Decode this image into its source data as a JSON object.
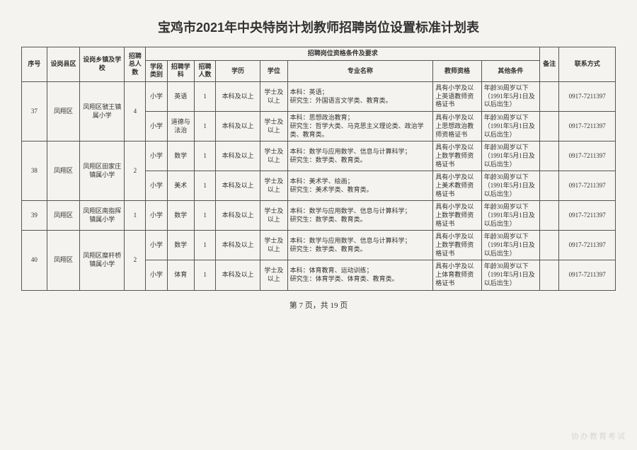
{
  "title": "宝鸡市2021年中央特岗计划教师招聘岗位设置标准计划表",
  "footer": "第 7 页，共 19 页",
  "colw": [
    "26",
    "34",
    "46",
    "22",
    "22",
    "28",
    "22",
    "46",
    "28",
    "150",
    "50",
    "60",
    "20",
    "58"
  ],
  "header": {
    "seq": "序号",
    "county": "设岗县区",
    "school": "设岗乡镇及学校",
    "total": "招聘总人数",
    "req_group": "招聘岗位资格条件及要求",
    "remark": "备注",
    "contact": "联系方式",
    "stage": "学段类别",
    "subject": "招聘学科",
    "num": "招聘人数",
    "edu": "学历",
    "degree": "学位",
    "major": "专业名称",
    "cert": "教师资格",
    "other": "其他条件"
  },
  "groups": [
    {
      "seq": "37",
      "county": "凤翔区",
      "school": "凤翔区虢王镇属小学",
      "total": "4",
      "rows": [
        {
          "stage": "小学",
          "subject": "英语",
          "num": "1",
          "edu": "本科及以上",
          "degree": "学士及以上",
          "major": "本科：英语；\n研究生：外国语言文学类、教育类。",
          "cert": "具有小学及以上英语教师资格证书",
          "other": "年龄30周岁以下（1991年5月1日及以后出生）",
          "remark": "",
          "contact": "0917-7211397"
        },
        {
          "stage": "小学",
          "subject": "道德与法治",
          "num": "1",
          "edu": "本科及以上",
          "degree": "学士及以上",
          "major": "本科：思想政治教育；\n研究生：哲学大类、马克思主义理论类、政治学类、教育类。",
          "cert": "具有小学及以上思想政治教师资格证书",
          "other": "年龄30周岁以下（1991年5月1日及以后出生）",
          "remark": "",
          "contact": "0917-7211397"
        }
      ]
    },
    {
      "seq": "38",
      "county": "凤翔区",
      "school": "凤翔区田家庄镇属小学",
      "total": "2",
      "rows": [
        {
          "stage": "小学",
          "subject": "数学",
          "num": "1",
          "edu": "本科及以上",
          "degree": "学士及以上",
          "major": "本科：数学与应用数学、信息与计算科学；\n研究生：数学类、教育类。",
          "cert": "具有小学及以上数学教师资格证书",
          "other": "年龄30周岁以下（1991年5月1日及以后出生）",
          "remark": "",
          "contact": "0917-7211397"
        },
        {
          "stage": "小学",
          "subject": "美术",
          "num": "1",
          "edu": "本科及以上",
          "degree": "学士及以上",
          "major": "本科：美术学、绘画；\n研究生：美术学类、教育类。",
          "cert": "具有小学及以上美术教师资格证书",
          "other": "年龄30周岁以下（1991年5月1日及以后出生）",
          "remark": "",
          "contact": "0917-7211397"
        }
      ]
    },
    {
      "seq": "39",
      "county": "凤翔区",
      "school": "凤翔区南指挥镇属小学",
      "total": "1",
      "rows": [
        {
          "stage": "小学",
          "subject": "数学",
          "num": "1",
          "edu": "本科及以上",
          "degree": "学士及以上",
          "major": "本科：数学与应用数学、信息与计算科学；\n研究生：数学类、教育类。",
          "cert": "具有小学及以上数学教师资格证书",
          "other": "年龄30周岁以下（1991年5月1日及以后出生）",
          "remark": "",
          "contact": "0917-7211397"
        }
      ]
    },
    {
      "seq": "40",
      "county": "凤翔区",
      "school": "凤翔区糜杆桥镇属小学",
      "total": "2",
      "rows": [
        {
          "stage": "小学",
          "subject": "数学",
          "num": "1",
          "edu": "本科及以上",
          "degree": "学士及以上",
          "major": "本科：数学与应用数学、信息与计算科学；\n研究生：数学类、教育类。",
          "cert": "具有小学及以上数学教师资格证书",
          "other": "年龄30周岁以下（1991年5月1日及以后出生）",
          "remark": "",
          "contact": "0917-7211397"
        },
        {
          "stage": "小学",
          "subject": "体育",
          "num": "1",
          "edu": "本科及以上",
          "degree": "学士及以上",
          "major": "本科：体育教育、运动训练；\n研究生：体育学类、体育类、教育类。",
          "cert": "具有小学及以上体育教师资格证书",
          "other": "年龄30周岁以下（1991年5月1日及以后出生）",
          "remark": "",
          "contact": "0917-7211397"
        }
      ]
    }
  ]
}
